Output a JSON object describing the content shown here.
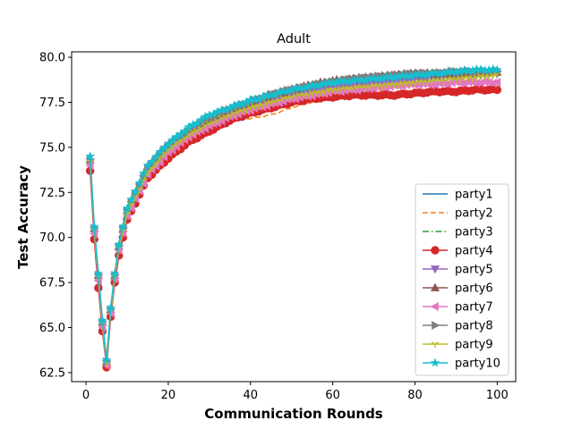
{
  "chart_data": {
    "type": "line",
    "title": "Adult",
    "xlabel": "Communication Rounds",
    "ylabel": "Test Accuracy",
    "xlim": [
      -3.5,
      104.5
    ],
    "ylim": [
      62.0,
      80.3
    ],
    "xticks": [
      0,
      20,
      40,
      60,
      80,
      100
    ],
    "yticks": [
      62.5,
      65.0,
      67.5,
      70.0,
      72.5,
      75.0,
      77.5,
      80.0
    ],
    "xtick_labels": [
      "0",
      "20",
      "40",
      "60",
      "80",
      "100"
    ],
    "ytick_labels": [
      "62.5",
      "65.0",
      "67.5",
      "70.0",
      "72.5",
      "75.0",
      "77.5",
      "80.0"
    ],
    "grid": false,
    "legend_position": "lower-right",
    "x": [
      1,
      2,
      3,
      4,
      5,
      6,
      7,
      8,
      10,
      15,
      20,
      25,
      30,
      35,
      40,
      45,
      50,
      55,
      60,
      65,
      70,
      75,
      80,
      85,
      90,
      95,
      100
    ],
    "series": [
      {
        "name": "party1",
        "color": "#1f77b4",
        "linestyle": "solid",
        "marker": "none",
        "values": [
          74.4,
          70.5,
          67.9,
          65.3,
          63.1,
          66.0,
          67.9,
          69.5,
          71.5,
          73.9,
          75.1,
          76.0,
          76.7,
          77.1,
          77.5,
          77.8,
          78.1,
          78.4,
          78.6,
          78.7,
          78.8,
          78.9,
          79.0,
          79.1,
          79.1,
          79.2,
          79.2
        ]
      },
      {
        "name": "party2",
        "color": "#ff7f0e",
        "linestyle": "dashed",
        "marker": "none",
        "values": [
          74.2,
          70.3,
          67.7,
          65.1,
          62.9,
          65.8,
          67.7,
          69.3,
          71.3,
          73.6,
          74.9,
          75.7,
          76.3,
          76.6,
          76.6,
          76.8,
          77.2,
          77.5,
          77.7,
          77.9,
          78.1,
          78.3,
          78.5,
          78.7,
          78.8,
          78.9,
          79.0
        ]
      },
      {
        "name": "party3",
        "color": "#2ca02c",
        "linestyle": "dashdot",
        "marker": "none",
        "values": [
          74.3,
          70.4,
          67.8,
          65.2,
          63.0,
          65.9,
          67.8,
          69.4,
          71.4,
          73.7,
          75.0,
          75.8,
          76.4,
          76.9,
          77.3,
          77.6,
          77.9,
          78.1,
          78.3,
          78.5,
          78.6,
          78.7,
          78.8,
          78.9,
          79.0,
          79.1,
          79.1
        ]
      },
      {
        "name": "party4",
        "color": "#d62728",
        "linestyle": "solid",
        "marker": "circle",
        "values": [
          73.7,
          69.9,
          67.2,
          64.8,
          62.8,
          65.6,
          67.5,
          69.0,
          71.0,
          73.3,
          74.4,
          75.3,
          75.9,
          76.5,
          76.9,
          77.2,
          77.5,
          77.7,
          77.8,
          77.9,
          77.9,
          77.9,
          78.0,
          78.1,
          78.1,
          78.2,
          78.2
        ]
      },
      {
        "name": "party5",
        "color": "#9467bd",
        "linestyle": "solid",
        "marker": "triangle-down",
        "values": [
          74.2,
          70.4,
          67.8,
          65.2,
          63.0,
          65.9,
          67.8,
          69.4,
          71.4,
          73.7,
          75.0,
          75.8,
          76.4,
          76.9,
          77.3,
          77.6,
          77.9,
          78.1,
          78.3,
          78.5,
          78.6,
          78.7,
          78.8,
          78.9,
          79.0,
          79.0,
          79.1
        ]
      },
      {
        "name": "party6",
        "color": "#8c564b",
        "linestyle": "solid",
        "marker": "triangle-up",
        "values": [
          74.3,
          70.5,
          67.9,
          65.3,
          63.1,
          66.0,
          67.9,
          69.5,
          71.5,
          73.8,
          75.1,
          75.9,
          76.6,
          77.1,
          77.5,
          77.9,
          78.2,
          78.5,
          78.7,
          78.8,
          78.9,
          79.0,
          79.1,
          79.1,
          79.1,
          79.2,
          79.2
        ]
      },
      {
        "name": "party7",
        "color": "#e377c2",
        "linestyle": "solid",
        "marker": "triangle-left",
        "values": [
          74.0,
          70.2,
          67.6,
          65.0,
          62.9,
          65.8,
          67.7,
          69.3,
          71.2,
          73.5,
          74.7,
          75.6,
          76.2,
          76.7,
          77.1,
          77.4,
          77.7,
          77.9,
          78.1,
          78.2,
          78.3,
          78.4,
          78.5,
          78.5,
          78.6,
          78.6,
          78.6
        ]
      },
      {
        "name": "party8",
        "color": "#7f7f7f",
        "linestyle": "solid",
        "marker": "triangle-right",
        "values": [
          74.3,
          70.5,
          67.9,
          65.3,
          63.1,
          66.0,
          67.9,
          69.5,
          71.5,
          73.8,
          75.1,
          75.9,
          76.6,
          77.1,
          77.5,
          77.9,
          78.2,
          78.4,
          78.6,
          78.8,
          78.9,
          79.0,
          79.1,
          79.1,
          79.2,
          79.2,
          79.2
        ]
      },
      {
        "name": "party9",
        "color": "#bcbd22",
        "linestyle": "solid",
        "marker": "tri-down",
        "values": [
          74.2,
          70.4,
          67.8,
          65.2,
          63.0,
          65.9,
          67.8,
          69.4,
          71.3,
          73.6,
          74.9,
          75.7,
          76.3,
          76.8,
          77.2,
          77.5,
          77.8,
          78.0,
          78.2,
          78.3,
          78.4,
          78.5,
          78.6,
          78.7,
          78.8,
          78.9,
          79.0
        ]
      },
      {
        "name": "party10",
        "color": "#17becf",
        "linestyle": "solid",
        "marker": "star",
        "values": [
          74.5,
          70.6,
          68.0,
          65.4,
          63.2,
          66.1,
          68.0,
          69.6,
          71.6,
          74.0,
          75.2,
          76.1,
          76.8,
          77.2,
          77.6,
          77.9,
          78.2,
          78.4,
          78.6,
          78.7,
          78.8,
          78.9,
          79.0,
          79.1,
          79.2,
          79.3,
          79.3
        ]
      }
    ]
  }
}
